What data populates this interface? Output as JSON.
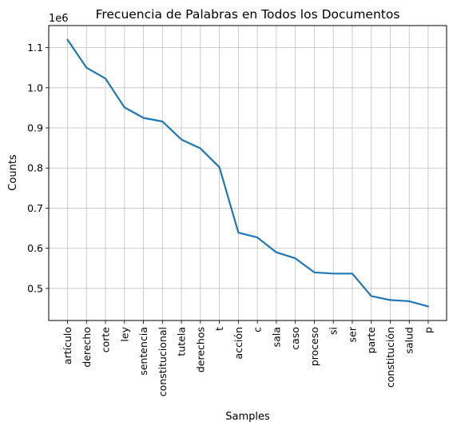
{
  "chart_data": {
    "type": "line",
    "title": "Frecuencia de Palabras en Todos los Documentos",
    "xlabel": "Samples",
    "ylabel": "Counts",
    "y_offset_label": "1e6",
    "grid": true,
    "ylim": [
      0.42,
      1.155
    ],
    "yticks": [
      0.5,
      0.6,
      0.7,
      0.8,
      0.9,
      1.0,
      1.1
    ],
    "ytick_labels": [
      "0.5",
      "0.6",
      "0.7",
      "0.8",
      "0.9",
      "1.0",
      "1.1"
    ],
    "line_color": "#1f77b4",
    "grid_color": "#c0c0c0",
    "categories": [
      "artículo",
      "derecho",
      "corte",
      "ley",
      "sentencia",
      "constitucional",
      "tutela",
      "derechos",
      "t",
      "acción",
      "c",
      "sala",
      "caso",
      "proceso",
      "si",
      "ser",
      "parte",
      "constitución",
      "salud",
      "p"
    ],
    "values": [
      1.12,
      1.05,
      1.023,
      0.951,
      0.925,
      0.916,
      0.871,
      0.849,
      0.802,
      0.639,
      0.627,
      0.59,
      0.575,
      0.54,
      0.537,
      0.537,
      0.481,
      0.471,
      0.468,
      0.455
    ]
  }
}
